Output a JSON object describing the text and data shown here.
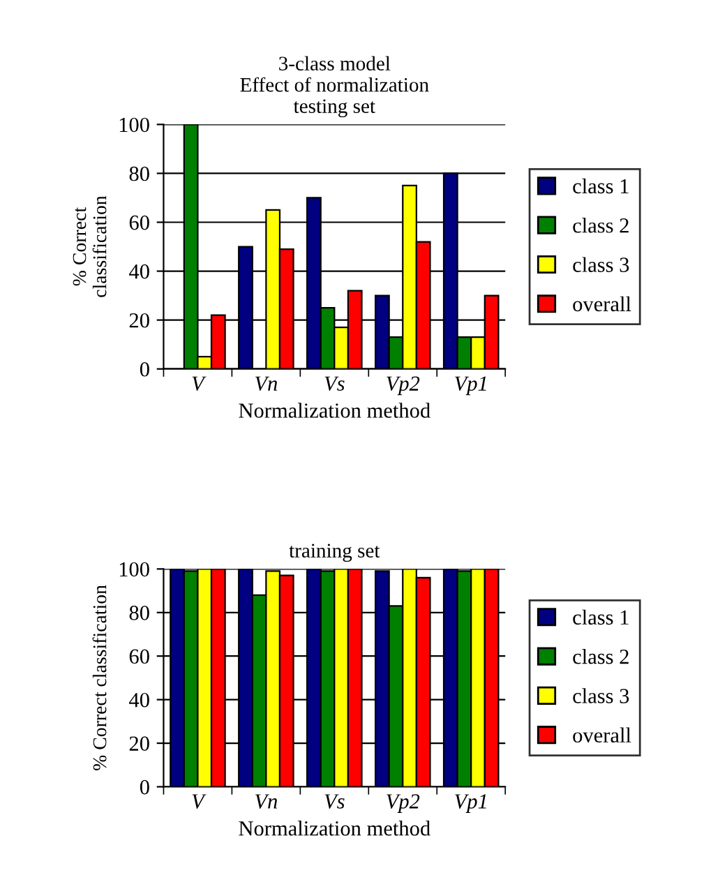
{
  "chart_data": [
    {
      "type": "bar",
      "title": "3-class model\nEffect of normalization\ntesting set",
      "xlabel": "Normalization method",
      "ylabel": "% Correct\nclassification",
      "categories": [
        "V",
        "Vn",
        "Vs",
        "Vp2",
        "Vp1"
      ],
      "ylim": [
        0,
        100
      ],
      "yticks": [
        0,
        20,
        40,
        60,
        80,
        100
      ],
      "grid": "y",
      "legend": "right",
      "series": [
        {
          "name": "class 1",
          "color": "#000080",
          "values": [
            null,
            50,
            70,
            30,
            80
          ]
        },
        {
          "name": "class 2",
          "color": "#008000",
          "values": [
            100,
            null,
            25,
            13,
            13
          ]
        },
        {
          "name": "class 3",
          "color": "#ffff00",
          "values": [
            5,
            65,
            17,
            75,
            13
          ]
        },
        {
          "name": "overall",
          "color": "#ff0000",
          "values": [
            22,
            49,
            32,
            52,
            30
          ]
        }
      ]
    },
    {
      "type": "bar",
      "title": "training set",
      "xlabel": "Normalization method",
      "ylabel": "% Correct classification",
      "categories": [
        "V",
        "Vn",
        "Vs",
        "Vp2",
        "Vp1"
      ],
      "ylim": [
        0,
        100
      ],
      "yticks": [
        0,
        20,
        40,
        60,
        80,
        100
      ],
      "grid": "y",
      "legend": "right",
      "series": [
        {
          "name": "class 1",
          "color": "#000080",
          "values": [
            100,
            100,
            100,
            99,
            100
          ]
        },
        {
          "name": "class 2",
          "color": "#008000",
          "values": [
            99,
            88,
            99,
            83,
            99
          ]
        },
        {
          "name": "class 3",
          "color": "#ffff00",
          "values": [
            100,
            99,
            100,
            100,
            100
          ]
        },
        {
          "name": "overall",
          "color": "#ff0000",
          "values": [
            100,
            97,
            100,
            96,
            100
          ]
        }
      ]
    }
  ]
}
